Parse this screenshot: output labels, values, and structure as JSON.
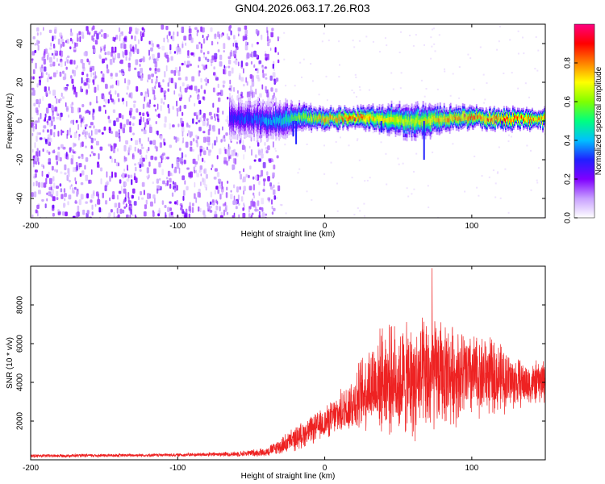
{
  "title": "GN04.2026.063.17.26.R03",
  "chart_data": [
    {
      "type": "heatmap",
      "xlabel": "Height of straight line (km)",
      "ylabel": "Frequency (Hz)",
      "xlim": [
        -200,
        150
      ],
      "ylim": [
        -50,
        50
      ],
      "xticks": [
        -200,
        -100,
        0,
        100
      ],
      "yticks": [
        -40,
        -20,
        0,
        20,
        40
      ],
      "colorbar": {
        "label": "Normalized spectral amplitude",
        "range": [
          0,
          1
        ],
        "ticks": [
          "0.0",
          "0.2",
          "0.4",
          "0.6",
          "0.8"
        ],
        "colors": [
          "#ffffff",
          "#c8a0ff",
          "#8000ff",
          "#2020ff",
          "#00c0ff",
          "#00ff80",
          "#80ff00",
          "#ffff00",
          "#ff8000",
          "#ff0000",
          "#ff0080"
        ]
      },
      "ridge": {
        "description_x": [
          -65,
          -50,
          -30,
          -20,
          0,
          20,
          40,
          60,
          80,
          100,
          120,
          150
        ],
        "center_hz": [
          2,
          1,
          0,
          2,
          1,
          2,
          1,
          0,
          1,
          2,
          1,
          1
        ],
        "halfwidth_hz": [
          6,
          5,
          6,
          4,
          3,
          3,
          4,
          5,
          4,
          3,
          3,
          3
        ],
        "peak_amplitude": [
          0.3,
          0.35,
          0.45,
          0.6,
          0.8,
          0.85,
          0.75,
          0.7,
          0.8,
          0.85,
          0.9,
          0.8
        ]
      },
      "noise_region_x": [
        -200,
        -35
      ]
    },
    {
      "type": "line",
      "xlabel": "Height of straight line (km)",
      "ylabel": "SNR (10 * v/v)",
      "xlim": [
        -200,
        150
      ],
      "ylim": [
        0,
        10000
      ],
      "xticks": [
        -200,
        -100,
        0,
        100
      ],
      "yticks": [
        2000,
        4000,
        6000,
        8000
      ],
      "color": "#ee2222",
      "envelope": {
        "x": [
          -200,
          -100,
          -60,
          -40,
          -30,
          -20,
          -10,
          0,
          10,
          20,
          30,
          40,
          50,
          60,
          70,
          80,
          90,
          100,
          110,
          120,
          130,
          140,
          150
        ],
        "mean": [
          200,
          250,
          300,
          400,
          700,
          1100,
          1500,
          1900,
          2400,
          3000,
          3800,
          4200,
          4100,
          4000,
          4200,
          4500,
          4400,
          4300,
          4400,
          4200,
          4000,
          3900,
          4100
        ],
        "amplitude": [
          100,
          100,
          150,
          250,
          500,
          700,
          800,
          900,
          1200,
          1800,
          2500,
          3000,
          3200,
          3300,
          3500,
          3000,
          2800,
          2500,
          2300,
          2000,
          1500,
          1200,
          1300
        ]
      },
      "max_value": 9900
    }
  ]
}
